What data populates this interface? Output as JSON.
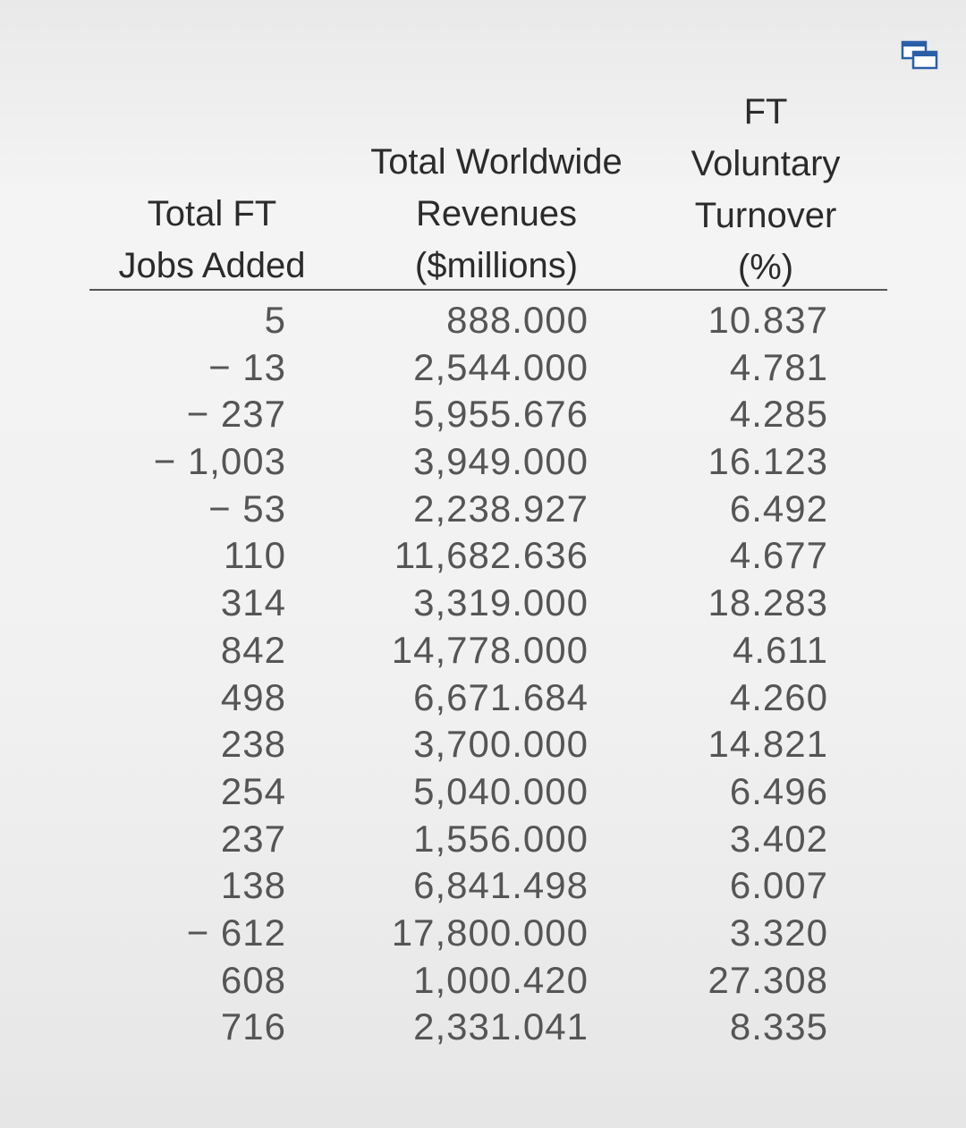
{
  "header": {
    "jobs_line1": "Total FT",
    "jobs_line2": "Jobs Added",
    "rev_line1": "Total Worldwide",
    "rev_line2": "Revenues",
    "rev_line3": "($millions)",
    "turn_line1": "FT",
    "turn_line2": "Voluntary",
    "turn_line3": "Turnover",
    "turn_line4": "(%)"
  },
  "icons": {
    "copy": "copy-icon"
  },
  "rows": [
    {
      "jobs": "5",
      "revenue": "888.000",
      "turnover": "10.837"
    },
    {
      "jobs": "− 13",
      "revenue": "2,544.000",
      "turnover": "4.781"
    },
    {
      "jobs": "− 237",
      "revenue": "5,955.676",
      "turnover": "4.285"
    },
    {
      "jobs": "− 1,003",
      "revenue": "3,949.000",
      "turnover": "16.123"
    },
    {
      "jobs": "− 53",
      "revenue": "2,238.927",
      "turnover": "6.492"
    },
    {
      "jobs": "110",
      "revenue": "11,682.636",
      "turnover": "4.677"
    },
    {
      "jobs": "314",
      "revenue": "3,319.000",
      "turnover": "18.283"
    },
    {
      "jobs": "842",
      "revenue": "14,778.000",
      "turnover": "4.611"
    },
    {
      "jobs": "498",
      "revenue": "6,671.684",
      "turnover": "4.260"
    },
    {
      "jobs": "238",
      "revenue": "3,700.000",
      "turnover": "14.821"
    },
    {
      "jobs": "254",
      "revenue": "5,040.000",
      "turnover": "6.496"
    },
    {
      "jobs": "237",
      "revenue": "1,556.000",
      "turnover": "3.402"
    },
    {
      "jobs": "138",
      "revenue": "6,841.498",
      "turnover": "6.007"
    },
    {
      "jobs": "− 612",
      "revenue": "17,800.000",
      "turnover": "3.320"
    },
    {
      "jobs": "608",
      "revenue": "1,000.420",
      "turnover": "27.308"
    },
    {
      "jobs": "716",
      "revenue": "2,331.041",
      "turnover": "8.335"
    }
  ]
}
